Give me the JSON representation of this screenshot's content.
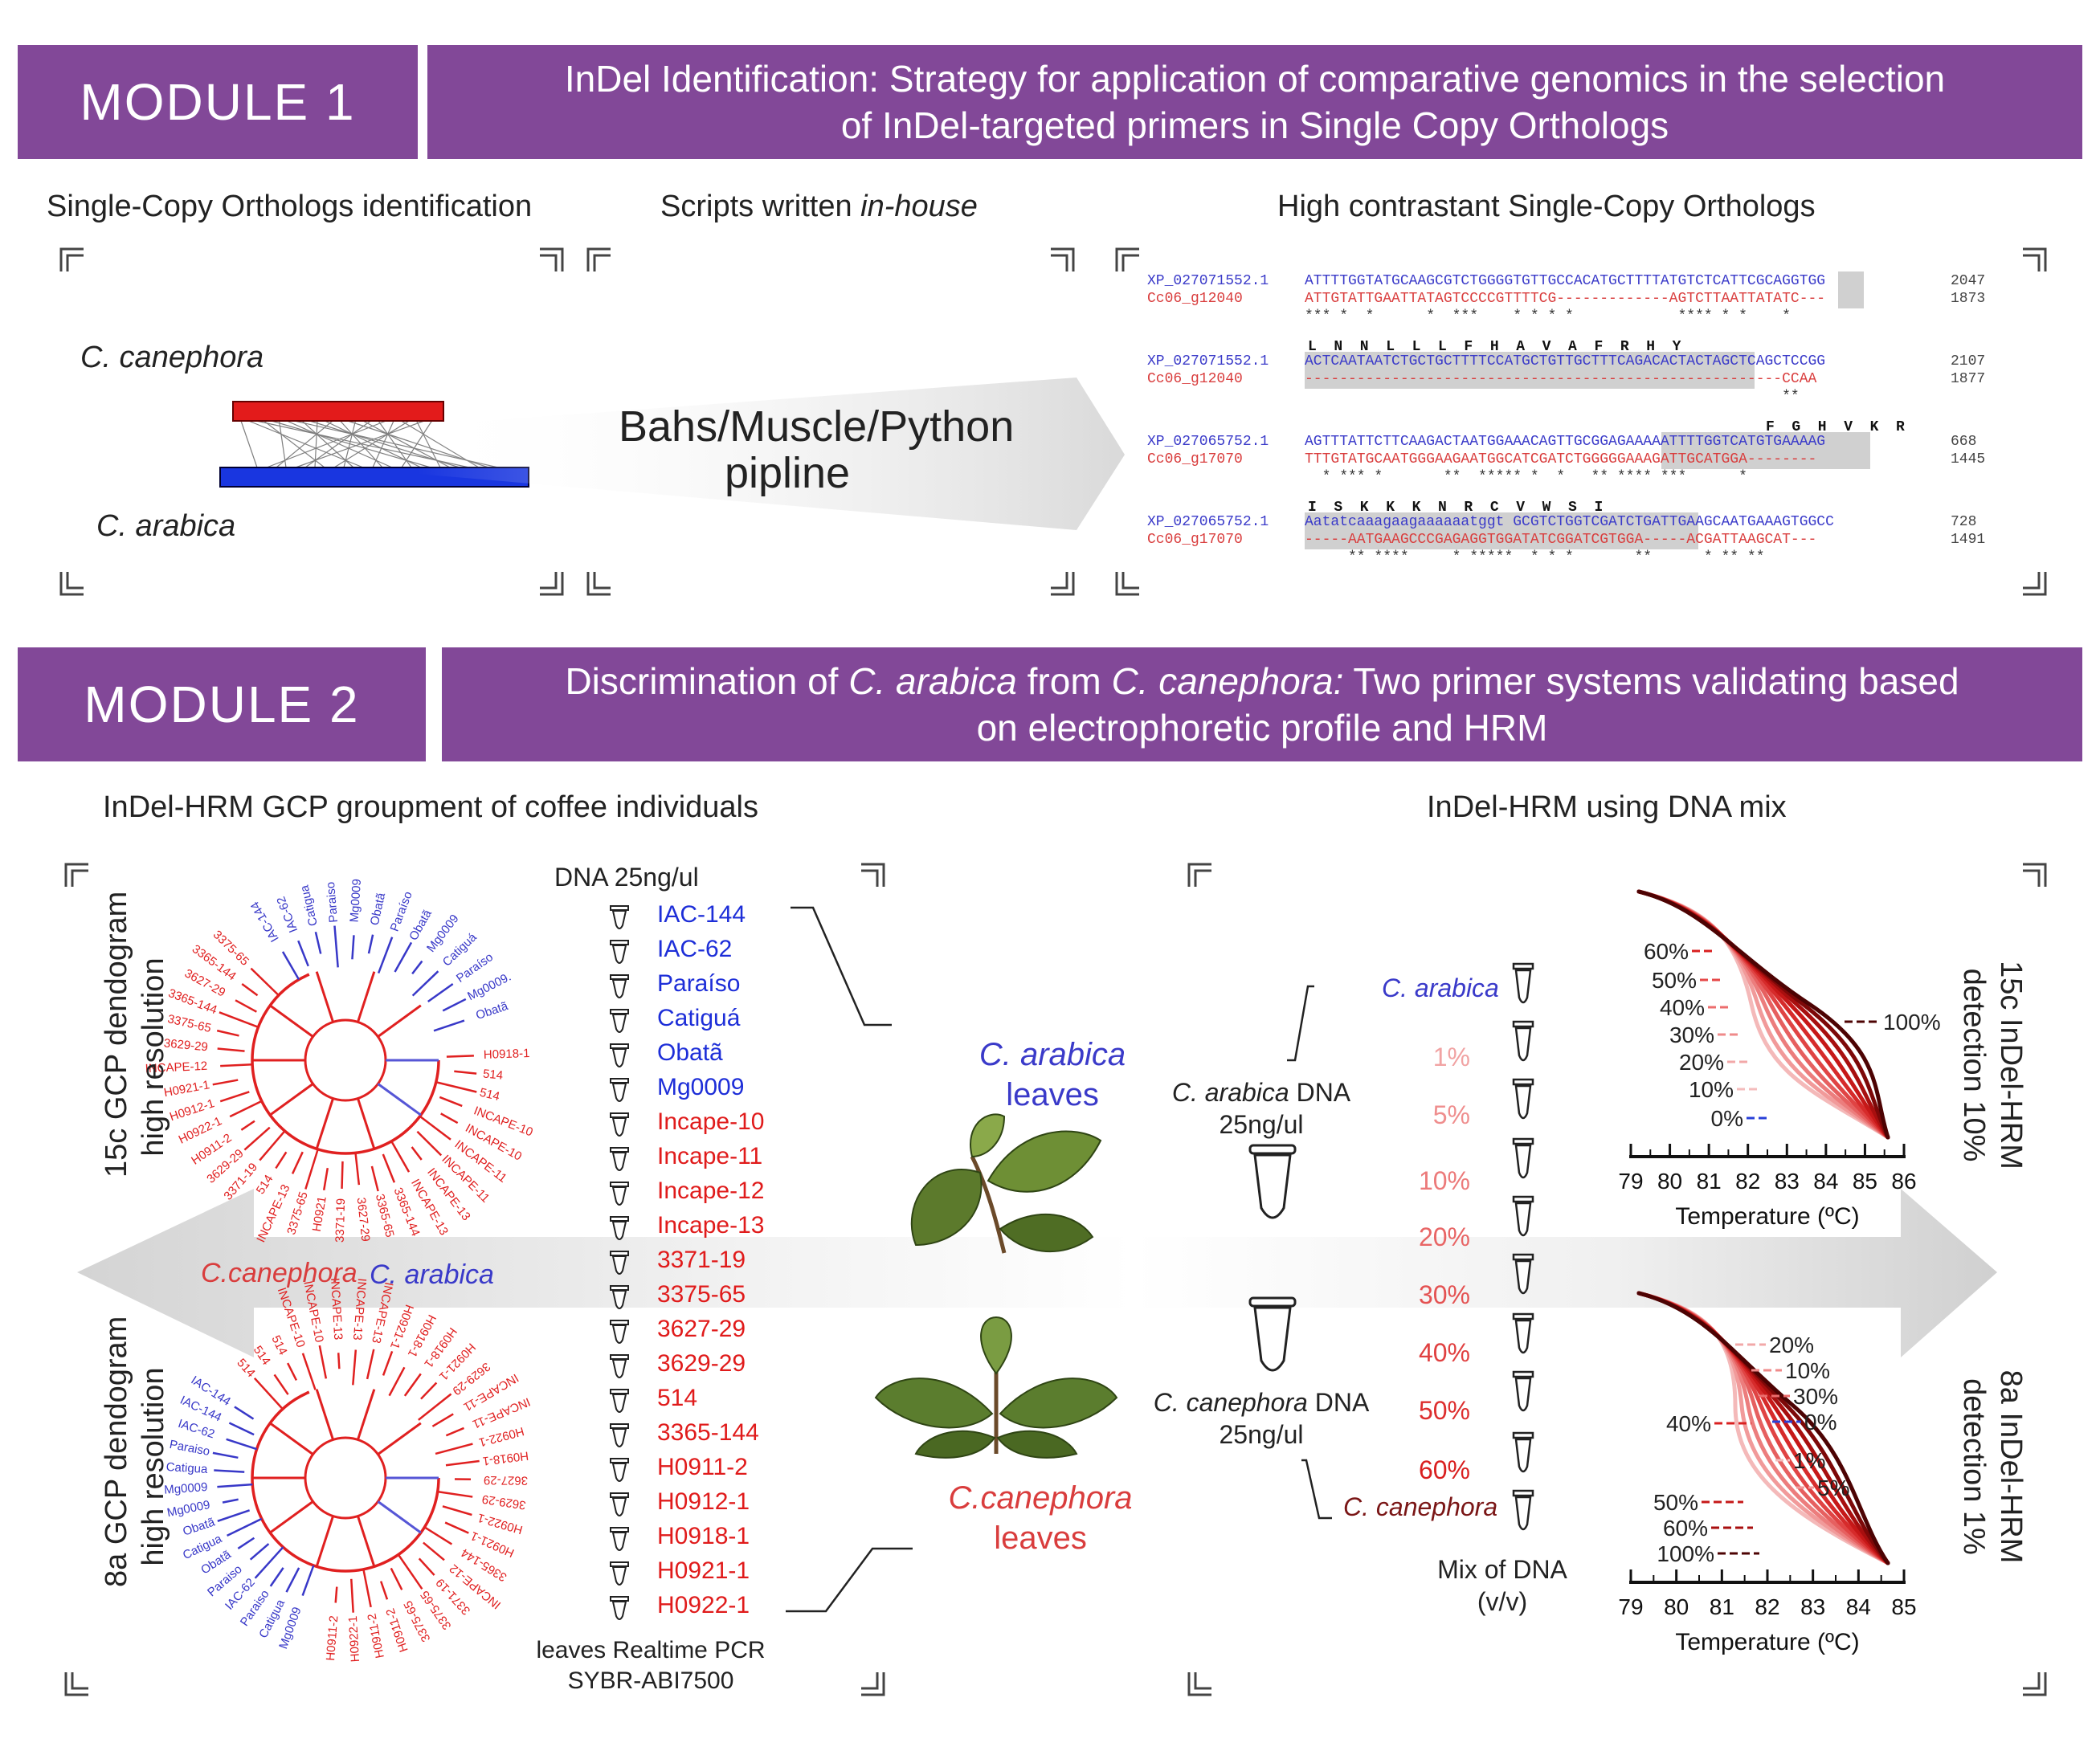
{
  "module1": {
    "label": "MODULE 1",
    "title_l1": "InDel Identification: Strategy for application of comparative genomics in the selection",
    "title_l2": "of InDel-targeted primers in Single  Copy Orthologs",
    "sub1": "Single-Copy Orthologs identification",
    "sub2_a": "Scripts written ",
    "sub2_b": "in-house",
    "sub3": "High contrastant Single-Copy Orthologs",
    "canephora": "C. canephora",
    "arabica": "C. arabica",
    "pipeline_l1": "Bahs/Muscle/Python",
    "pipeline_l2": "pipline",
    "alignments": [
      {
        "aa": "",
        "id1": "XP_027071552.1",
        "s1": "ATTTTGGTATGCAAGCGTCTGGGGTGTTGCCACATGCTTTTATGTCTCATTCGCAGGTGG",
        "n1": "2047",
        "id2": "Cc06_g12040",
        "s2": "ATTGTATTGAATTATAGTCCCCGTTTTCG-------------AGTCTTAATTATATC---",
        "n2": "1873",
        "stars": "*** *  *      *  ***    * * * *            **** * *    *"
      },
      {
        "aa": "L  N  N  L  L  L  F  H  A  V  A  F  R  H  Y",
        "id1": "XP_027071552.1",
        "s1": "ACTCAATAATCTGCTGCTTTTCCATGCTGTTGCTTTCAGACACTACTAGCTCAGCTCCGG",
        "n1": "2107",
        "id2": "Cc06_g12040",
        "s2": "-------------------------------------------------------CCAA",
        "n2": "1877",
        "stars": "                                                       **"
      },
      {
        "aa": "F  G  H  V  K  R",
        "id1": "XP_027065752.1",
        "s1": "AGTTTATTCTTCAAGACTAATGGAAACAGTTGCGGAGAAAAATTTTGGTCATGTGAAAAG",
        "n1": "668",
        "id2": "Cc06_g17070",
        "s2": "TTTGTATGCAATGGGAAGAATGGCATCGATCTGGGGGAAAGATTGCATGGA--------",
        "n2": "1445",
        "stars": "  * *** *       **  ***** *  *   ** **** ***      *"
      },
      {
        "aa": "I  S  K  K  K  N  R  C  V  W  S  I",
        "id1": "XP_027065752.1",
        "s1": "Aatatcaaagaagaaaaaatggt GCGTCTGGTCGATCTGATTGAAGCAATGAAAGTGGCC",
        "n1": "728",
        "id2": "Cc06_g17070",
        "s2": "-----AATGAAGCCCGAGAGGTGGATATCGGATCGTGGA-----ACGATTAAGCAT---",
        "n2": "1491",
        "stars": "     ** ****     * *****  * * *       **      * ** **"
      }
    ]
  },
  "module2": {
    "label": "MODULE 2",
    "title_l1_a": "Discrimination of ",
    "title_l1_b": "C. arabica",
    "title_l1_c": " from ",
    "title_l1_d": "C. canephora:",
    "title_l1_e": " Two primer systems validating based",
    "title_l2": "on electrophoretic profile and HRM",
    "sub_left": "InDel-HRM GCP groupment of coffee individuals",
    "sub_right": "InDel-HRM using DNA mix",
    "dend_top_l1": "15c GCP dendogram",
    "dend_top_l2": "high resolution",
    "dend_bot_l1": "8a GCP dendogram",
    "dend_bot_l2": "high resolution",
    "canephora_mid": "C.canephora",
    "arabica_mid": "C. arabica",
    "dna_header": "DNA 25ng/ul",
    "samples_blue": [
      "IAC-144",
      "IAC-62",
      "Paraíso",
      "Catiguá",
      "Obatã",
      "Mg0009"
    ],
    "samples_red": [
      "Incape-10",
      "Incape-11",
      "Incape-12",
      "Incape-13",
      "3371-19",
      "3375-65",
      "3627-29",
      "3629-29",
      "514",
      "3365-144",
      "H0911-2",
      "H0912-1",
      "H0918-1",
      "H0921-1",
      "H0922-1"
    ],
    "pcr_l1": "leaves Realtime PCR",
    "pcr_l2": "SYBR-ABI7500",
    "arabica_leaves_l1": "C. arabica",
    "arabica_leaves_l2": "leaves",
    "canephora_leaves_l1": "C.canephora",
    "canephora_leaves_l2": "leaves",
    "arabica_dna_a": "C. arabica",
    "arabica_dna_b": " DNA",
    "arabica_dna_c": "25ng/ul",
    "canephora_dna_a": "C. canephora",
    "canephora_dna_b": " DNA",
    "canephora_dna_c": "25ng/ul",
    "mix_top": "C. arabica",
    "mix_bottom": "C. canephora",
    "mix_pcts": [
      "1%",
      "5%",
      "10%",
      "20%",
      "30%",
      "40%",
      "50%",
      "60%"
    ],
    "mix_l1": "Mix of DNA",
    "mix_l2": "(v/v)",
    "hrm_top_l1": "15c InDel-HRM",
    "hrm_top_l2": "detection 10%",
    "hrm_bot_l1": "8a InDel-HRM",
    "hrm_bot_l2": "detection 1%",
    "temp_label": "Temperature (ºC)",
    "chart_top_ticks": [
      "79",
      "80",
      "81",
      "82",
      "83",
      "84",
      "85",
      "86"
    ],
    "chart_bot_ticks": [
      "79",
      "80",
      "81",
      "82",
      "83",
      "84",
      "85"
    ],
    "chart_top_labels": [
      "60%",
      "50%",
      "40%",
      "30%",
      "20%",
      "10%",
      "0%",
      "100%"
    ],
    "chart_bot_labels": [
      "20%",
      "10%",
      "30%",
      "0%",
      "40%",
      "1%",
      "5%",
      "50%",
      "60%",
      "100%"
    ],
    "dend_top_blue": [
      "IAC-144",
      "IAC-62",
      "Catigua",
      "Paraiso",
      "Mg0009",
      "Obatã",
      "Paraíso",
      "Obatã",
      "Mg0009",
      "Catiguá",
      "Paraíso",
      "Mg0009.",
      "Obatã"
    ],
    "dend_top_red": [
      "H0918-1",
      "514",
      "514",
      "INCAPE-10",
      "INCAPE-10",
      "INCAPE-11",
      "INCAPE-11",
      "INCAPE-13",
      "INCAPE-13",
      "3365-144",
      "3365-65",
      "3627-29",
      "3371-19",
      "H0921",
      "3375-65",
      "INCAPE-13",
      "514",
      "3371-19",
      "3629-29",
      "H0911-2",
      "H0922-1",
      "H0912-1",
      "H0921-1",
      "INCAPE-12",
      "3629-29",
      "3375-65",
      "3365-144",
      "3627-29",
      "3365-144",
      "3375-65"
    ],
    "dend_bot_blue": [
      "Mg0009",
      "Catigua",
      "Paraiso",
      "IAC-62",
      "Paraiso",
      "Obatã",
      "Catigua",
      "Obatã",
      "Mg0009",
      "Mg0009",
      "Catigua",
      "Paraiso",
      "IAC-62",
      "IAC-144",
      "IAC-144"
    ],
    "dend_bot_red": [
      "514",
      "514",
      "514",
      "INCAPE-10",
      "INCAPE-10",
      "INCAPE-13",
      "INCAPE-13",
      "INCAPE-13",
      "H0921-1",
      "H0918-1",
      "H0918-1",
      "H0921-1",
      "3629-29",
      "INCAPE-11",
      "INCAPE-11",
      "H0922-1",
      "H0918-1",
      "3627-29",
      "3629-29",
      "H0922-1",
      "H0921-1",
      "3365-144",
      "INCAPE-12",
      "3371-19",
      "3375-65",
      "3375-65",
      "H0911-2",
      "H0911-2",
      "H0922-1",
      "H0911-2"
    ]
  }
}
